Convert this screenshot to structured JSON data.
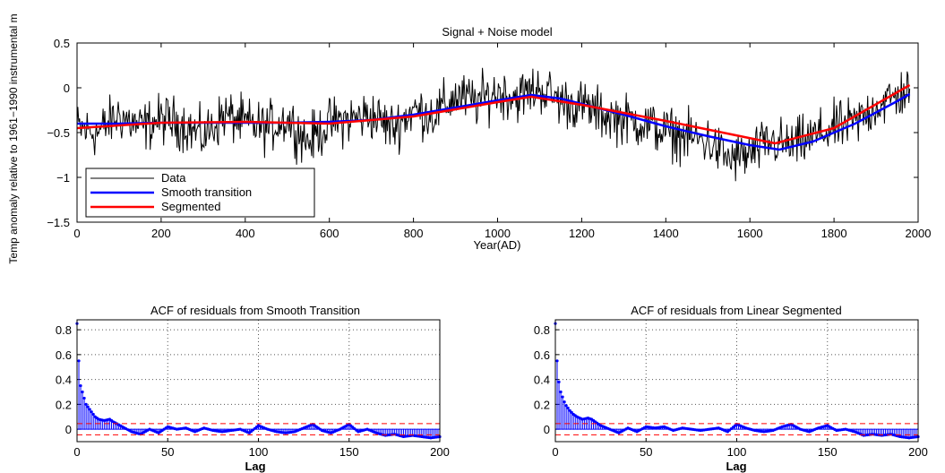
{
  "chart_data": [
    {
      "type": "line",
      "title": "Signal + Noise model",
      "xlabel": "Year(AD)",
      "ylabel": "Temp anomaly relative to 1961−1990 instrumental m",
      "xlim": [
        0,
        2000
      ],
      "ylim": [
        -1.5,
        0.5
      ],
      "xticks": [
        0,
        200,
        400,
        600,
        800,
        1000,
        1200,
        1400,
        1600,
        1800,
        2000
      ],
      "yticks": [
        -1.5,
        -1,
        -0.5,
        0,
        0.5
      ],
      "xtick_labels": [
        "0",
        "200",
        "400",
        "600",
        "800",
        "1000",
        "1200",
        "1400",
        "1600",
        "1800",
        "2000"
      ],
      "ytick_labels": [
        "−1.5",
        "−1",
        "−0.5",
        "0",
        "0.5"
      ],
      "grid": false,
      "legend": "bottom-left",
      "colors": {
        "data": "#000000",
        "smooth": "#0000ff",
        "segmented": "#ff0000"
      },
      "series": [
        {
          "name": "Data",
          "kind": "noisy",
          "x": [
            0,
            50,
            100,
            150,
            200,
            250,
            300,
            350,
            400,
            450,
            500,
            550,
            600,
            650,
            700,
            750,
            800,
            850,
            900,
            950,
            1000,
            1050,
            1100,
            1150,
            1200,
            1250,
            1300,
            1350,
            1400,
            1450,
            1500,
            1550,
            1600,
            1650,
            1700,
            1750,
            1800,
            1850,
            1900,
            1950,
            1980
          ],
          "y": [
            -0.45,
            -0.5,
            -0.3,
            -0.45,
            -0.35,
            -0.4,
            -0.55,
            -0.3,
            -0.4,
            -0.45,
            -0.35,
            -0.6,
            -0.4,
            -0.35,
            -0.3,
            -0.45,
            -0.25,
            -0.3,
            -0.1,
            -0.15,
            -0.05,
            -0.1,
            0.0,
            -0.15,
            -0.2,
            -0.3,
            -0.35,
            -0.4,
            -0.5,
            -0.55,
            -0.6,
            -0.8,
            -0.75,
            -0.6,
            -0.65,
            -0.55,
            -0.45,
            -0.4,
            -0.2,
            -0.1,
            0.0
          ]
        },
        {
          "name": "Smooth transition",
          "x": [
            0,
            100,
            200,
            300,
            400,
            500,
            600,
            700,
            800,
            900,
            1000,
            1080,
            1150,
            1200,
            1300,
            1400,
            1500,
            1600,
            1670,
            1750,
            1850,
            1950,
            1980
          ],
          "y": [
            -0.4,
            -0.4,
            -0.39,
            -0.39,
            -0.39,
            -0.39,
            -0.38,
            -0.36,
            -0.3,
            -0.22,
            -0.14,
            -0.08,
            -0.12,
            -0.18,
            -0.3,
            -0.43,
            -0.54,
            -0.64,
            -0.69,
            -0.6,
            -0.4,
            -0.15,
            -0.07
          ]
        },
        {
          "name": "Segmented",
          "x": [
            0,
            200,
            400,
            600,
            800,
            1000,
            1080,
            1200,
            1400,
            1660,
            1800,
            1980
          ],
          "y": [
            -0.45,
            -0.39,
            -0.38,
            -0.4,
            -0.32,
            -0.16,
            -0.1,
            -0.19,
            -0.37,
            -0.62,
            -0.45,
            0.03
          ]
        }
      ]
    },
    {
      "type": "bar",
      "title": "ACF of residuals from Smooth Transition",
      "xlabel": "Lag",
      "xlim": [
        0,
        200
      ],
      "ylim": [
        -0.1,
        0.88
      ],
      "xticks": [
        0,
        50,
        100,
        150,
        200
      ],
      "yticks": [
        0,
        0.2,
        0.4,
        0.6,
        0.8
      ],
      "grid": true,
      "confidence_bound": 0.045,
      "colors": {
        "stem": "#0000ff",
        "bound": "#ff0000",
        "marker": "#0000ff"
      },
      "lags": [
        0,
        1,
        2,
        3,
        4,
        5,
        6,
        8,
        10,
        12,
        15,
        18,
        20,
        25,
        30,
        35,
        40,
        45,
        50,
        55,
        60,
        65,
        70,
        75,
        80,
        85,
        90,
        95,
        100,
        105,
        110,
        115,
        120,
        125,
        130,
        135,
        140,
        145,
        150,
        155,
        160,
        165,
        170,
        175,
        180,
        185,
        190,
        195,
        200
      ],
      "values": [
        0.85,
        0.55,
        0.35,
        0.3,
        0.25,
        0.2,
        0.18,
        0.14,
        0.1,
        0.08,
        0.07,
        0.08,
        0.06,
        0.02,
        -0.02,
        -0.04,
        0.0,
        -0.03,
        0.02,
        0.0,
        0.01,
        -0.02,
        0.01,
        -0.01,
        -0.02,
        -0.01,
        0.0,
        -0.03,
        0.03,
        0.0,
        -0.02,
        -0.03,
        -0.02,
        0.01,
        0.04,
        -0.01,
        -0.03,
        0.0,
        0.04,
        -0.02,
        0.0,
        -0.03,
        -0.05,
        -0.04,
        -0.06,
        -0.05,
        -0.06,
        -0.07,
        -0.06
      ]
    },
    {
      "type": "bar",
      "title": "ACF of residuals from Linear Segmented",
      "xlabel": "Lag",
      "xlim": [
        0,
        200
      ],
      "ylim": [
        -0.1,
        0.88
      ],
      "xticks": [
        0,
        50,
        100,
        150,
        200
      ],
      "yticks": [
        0,
        0.2,
        0.4,
        0.6,
        0.8
      ],
      "grid": true,
      "confidence_bound": 0.045,
      "colors": {
        "stem": "#0000ff",
        "bound": "#ff0000",
        "marker": "#0000ff"
      },
      "lags": [
        0,
        1,
        2,
        3,
        4,
        5,
        6,
        8,
        10,
        12,
        15,
        18,
        20,
        25,
        30,
        35,
        40,
        45,
        50,
        55,
        60,
        65,
        70,
        75,
        80,
        85,
        90,
        95,
        100,
        105,
        110,
        115,
        120,
        125,
        130,
        135,
        140,
        145,
        150,
        155,
        160,
        165,
        170,
        175,
        180,
        185,
        190,
        195,
        200
      ],
      "values": [
        0.85,
        0.55,
        0.38,
        0.3,
        0.26,
        0.22,
        0.19,
        0.15,
        0.12,
        0.1,
        0.08,
        0.09,
        0.08,
        0.03,
        0.0,
        -0.03,
        0.01,
        -0.02,
        0.02,
        0.01,
        0.02,
        -0.01,
        0.01,
        0.0,
        -0.01,
        0.0,
        0.01,
        -0.02,
        0.04,
        0.01,
        -0.01,
        -0.02,
        -0.01,
        0.02,
        0.04,
        0.0,
        -0.02,
        0.01,
        0.03,
        -0.01,
        0.0,
        -0.02,
        -0.05,
        -0.04,
        -0.05,
        -0.04,
        -0.06,
        -0.07,
        -0.06
      ]
    }
  ]
}
